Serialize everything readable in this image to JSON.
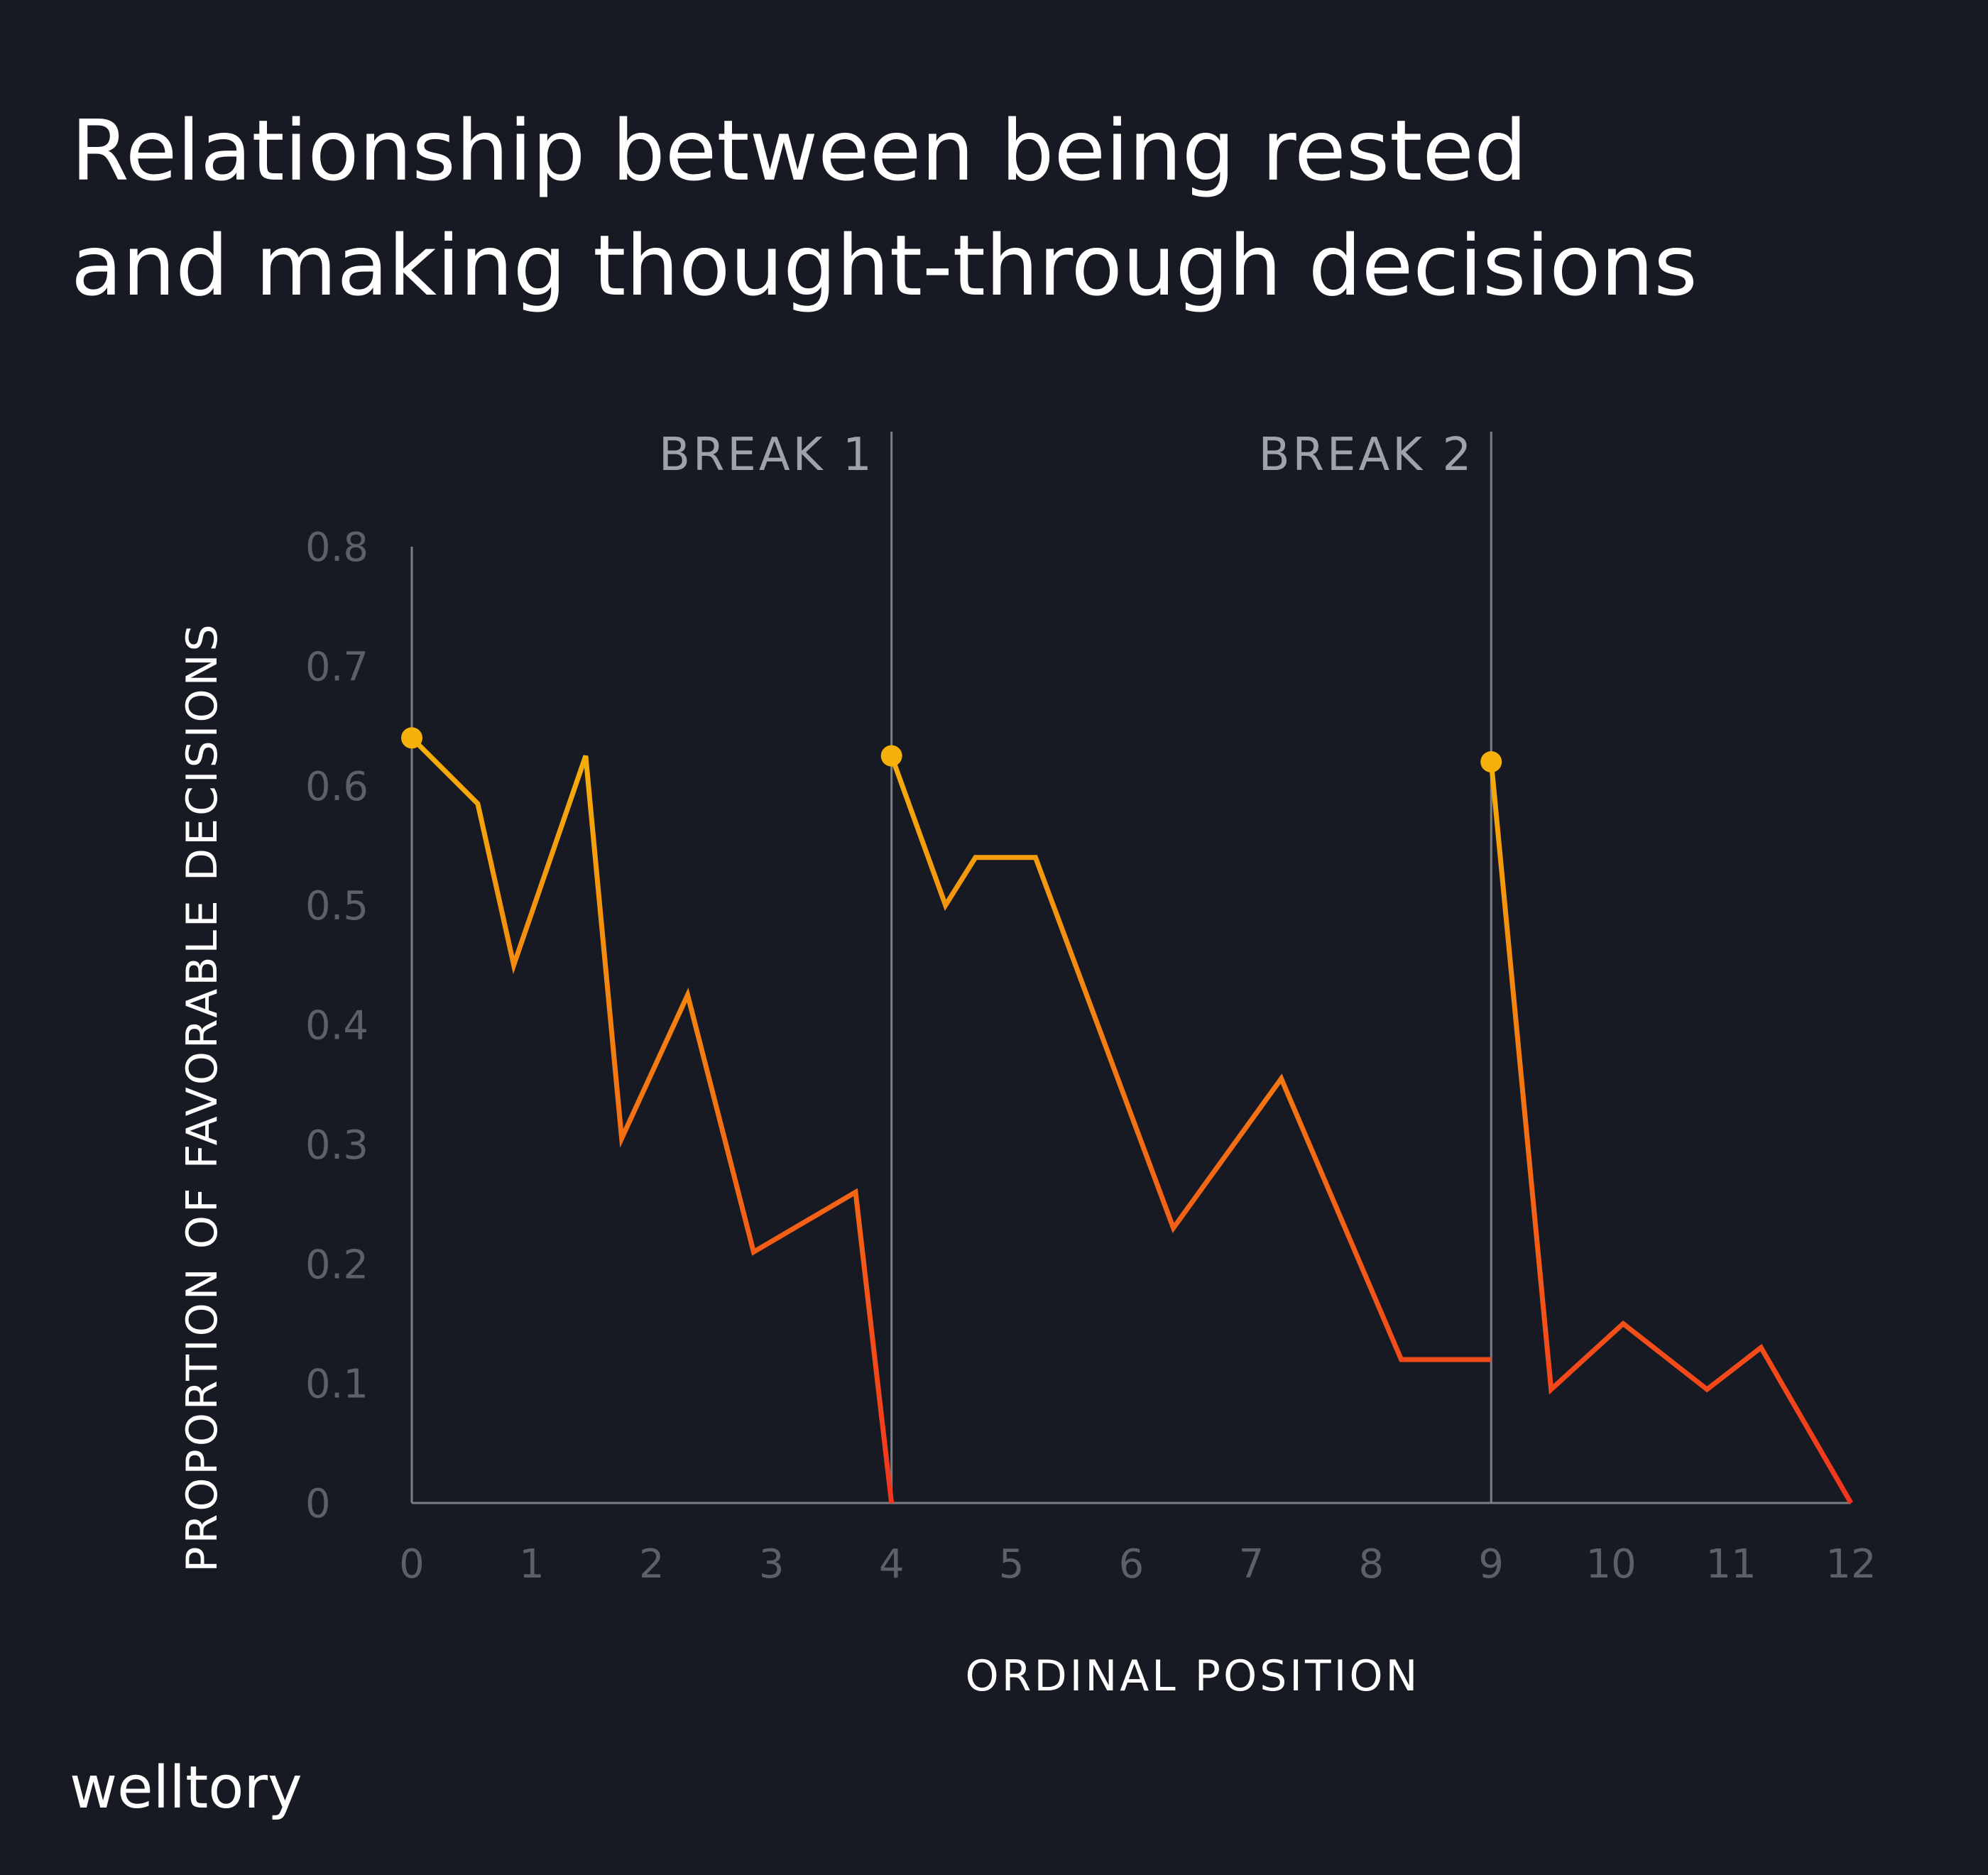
{
  "title": {
    "line1": "Relationship between being rested",
    "line2": "and making thought-through decisions"
  },
  "brand": {
    "logo_text": "welltory"
  },
  "colors": {
    "background": "#171a22",
    "line_start": "#f5b00a",
    "line_end": "#f2341e",
    "marker": "#f5b00a",
    "axis": "#7a7e86",
    "tick_label": "#5c6068",
    "break_label": "#9ea2aa"
  },
  "chart_data": {
    "type": "line",
    "xlabel": "ORDINAL POSITION",
    "ylabel": "PROPORTION OF FAVORABLE DECISIONS",
    "xlim": [
      0,
      12
    ],
    "ylim": [
      0,
      0.8
    ],
    "x_ticks": [
      "0",
      "1",
      "2",
      "3",
      "4",
      "5",
      "6",
      "7",
      "8",
      "9",
      "10",
      "11",
      "12"
    ],
    "y_ticks": [
      "0",
      "0.1",
      "0.2",
      "0.3",
      "0.4",
      "0.5",
      "0.6",
      "0.7",
      "0.8"
    ],
    "grid": false,
    "legend": "none",
    "breaks": [
      {
        "label": "BREAK 1",
        "x": 4
      },
      {
        "label": "BREAK 2",
        "x": 9
      }
    ],
    "segments": [
      {
        "points": [
          [
            0,
            0.64
          ],
          [
            0.55,
            0.585
          ],
          [
            0.85,
            0.45
          ],
          [
            1.45,
            0.625
          ],
          [
            1.75,
            0.305
          ],
          [
            2.3,
            0.425
          ],
          [
            2.85,
            0.21
          ],
          [
            3.7,
            0.26
          ],
          [
            4.0,
            0.0
          ]
        ]
      },
      {
        "points": [
          [
            4.0,
            0.625
          ],
          [
            4.45,
            0.5
          ],
          [
            4.7,
            0.54
          ],
          [
            5.2,
            0.54
          ],
          [
            6.35,
            0.23
          ],
          [
            7.25,
            0.355
          ],
          [
            8.25,
            0.12
          ],
          [
            9.0,
            0.12
          ]
        ]
      },
      {
        "points": [
          [
            9.0,
            0.62
          ],
          [
            9.5,
            0.095
          ],
          [
            10.1,
            0.15
          ],
          [
            10.8,
            0.095
          ],
          [
            11.25,
            0.13
          ],
          [
            12.0,
            0.0
          ]
        ]
      }
    ]
  }
}
